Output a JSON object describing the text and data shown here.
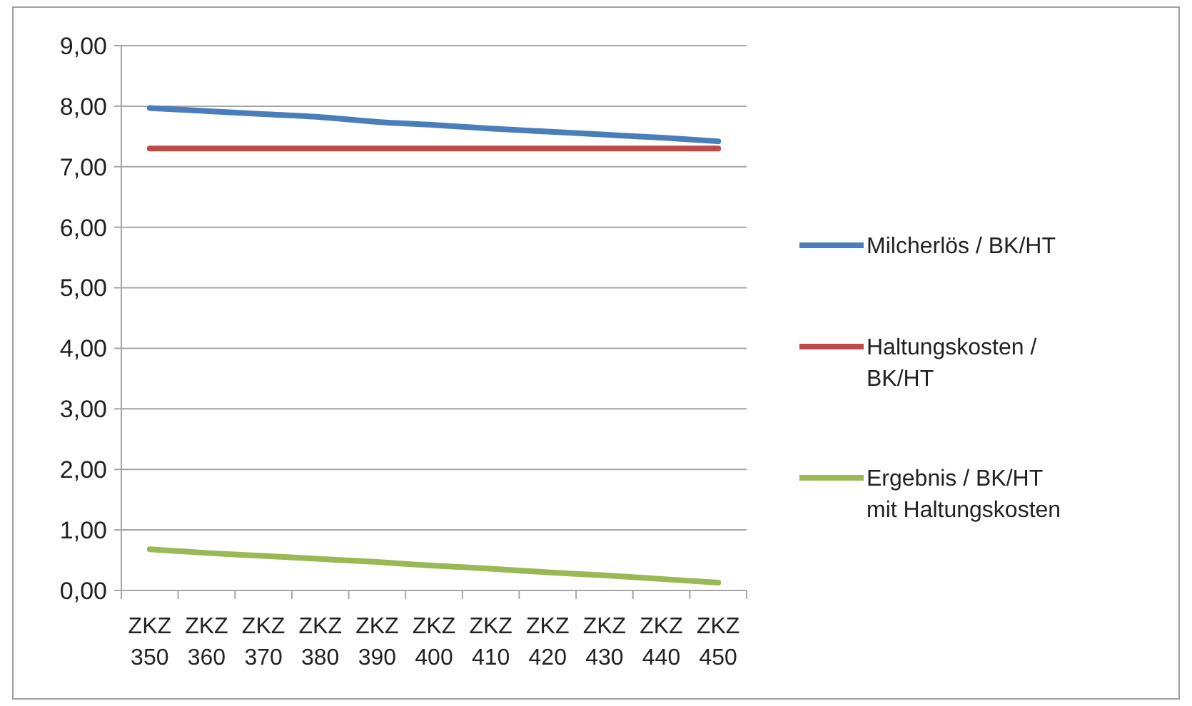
{
  "chart_data": {
    "type": "line",
    "categories": [
      "ZKZ 350",
      "ZKZ 360",
      "ZKZ 370",
      "ZKZ 380",
      "ZKZ 390",
      "ZKZ 400",
      "ZKZ 410",
      "ZKZ 420",
      "ZKZ 430",
      "ZKZ 440",
      "ZKZ 450"
    ],
    "series": [
      {
        "name": "Milcherlös / BK/HT",
        "color": "#4a7ebb",
        "values": [
          7.97,
          7.92,
          7.87,
          7.82,
          7.74,
          7.69,
          7.63,
          7.58,
          7.53,
          7.48,
          7.42
        ]
      },
      {
        "name": "Haltungskosten / BK/HT",
        "color": "#be4b48",
        "values": [
          7.3,
          7.3,
          7.3,
          7.3,
          7.3,
          7.3,
          7.3,
          7.3,
          7.3,
          7.3,
          7.3
        ]
      },
      {
        "name": "Ergebnis / BK/HT mit Haltungskosten",
        "color": "#98b954",
        "values": [
          0.68,
          0.62,
          0.57,
          0.52,
          0.47,
          0.41,
          0.36,
          0.3,
          0.25,
          0.19,
          0.13
        ]
      }
    ],
    "ylim": [
      0,
      9
    ],
    "yticks": [
      {
        "value": 0,
        "label": "0,00"
      },
      {
        "value": 1,
        "label": "1,00"
      },
      {
        "value": 2,
        "label": "2,00"
      },
      {
        "value": 3,
        "label": "3,00"
      },
      {
        "value": 4,
        "label": "4,00"
      },
      {
        "value": 5,
        "label": "5,00"
      },
      {
        "value": 6,
        "label": "6,00"
      },
      {
        "value": 7,
        "label": "7,00"
      },
      {
        "value": 8,
        "label": "8,00"
      },
      {
        "value": 9,
        "label": "9,00"
      }
    ],
    "grid": "y",
    "legend": "right",
    "marker": "none",
    "line_style": "solid"
  }
}
